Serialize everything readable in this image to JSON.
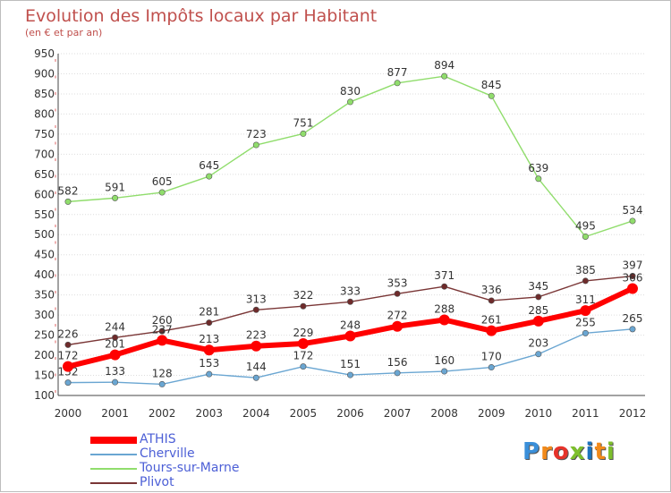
{
  "chart_title": "Evolution des Impôts locaux par Habitant",
  "chart_subtitle": "(en € et par an)",
  "logo_text": "Proxiti",
  "colors": {
    "ATHIS": "#ff0000",
    "Cherville": "#6aa6d2",
    "Tours-sur-Marne": "#90dd6c",
    "Plivot": "#7a3636",
    "title": "#c0504d",
    "legend_text": "#4c5fd6"
  },
  "chart_data": {
    "type": "line",
    "title": "Evolution des Impôts locaux par Habitant",
    "subtitle": "(en € et par an)",
    "xlabel": "",
    "ylabel": "",
    "x": [
      "2000",
      "2001",
      "2002",
      "2003",
      "2004",
      "2005",
      "2006",
      "2007",
      "2008",
      "2009",
      "2010",
      "2011",
      "2012"
    ],
    "yticks": [
      100,
      150,
      200,
      250,
      300,
      350,
      400,
      450,
      500,
      550,
      600,
      650,
      700,
      750,
      800,
      850,
      900,
      950
    ],
    "ylim": [
      100,
      950
    ],
    "grid": "horizontal",
    "legend_position": "bottom-left",
    "series": [
      {
        "name": "Tours-sur-Marne",
        "values": [
          582,
          591,
          605,
          645,
          723,
          751,
          830,
          877,
          894,
          845,
          639,
          495,
          534
        ]
      },
      {
        "name": "Plivot",
        "values": [
          226,
          244,
          260,
          281,
          313,
          322,
          333,
          353,
          371,
          336,
          345,
          385,
          397
        ]
      },
      {
        "name": "Cherville",
        "values": [
          132,
          133,
          128,
          153,
          144,
          172,
          151,
          156,
          160,
          170,
          203,
          255,
          265
        ]
      },
      {
        "name": "ATHIS",
        "values": [
          172,
          201,
          237,
          213,
          223,
          229,
          248,
          272,
          288,
          261,
          285,
          311,
          366
        ]
      }
    ]
  },
  "legend": [
    {
      "name": "ATHIS"
    },
    {
      "name": "Cherville"
    },
    {
      "name": "Tours-sur-Marne"
    },
    {
      "name": "Plivot"
    }
  ]
}
